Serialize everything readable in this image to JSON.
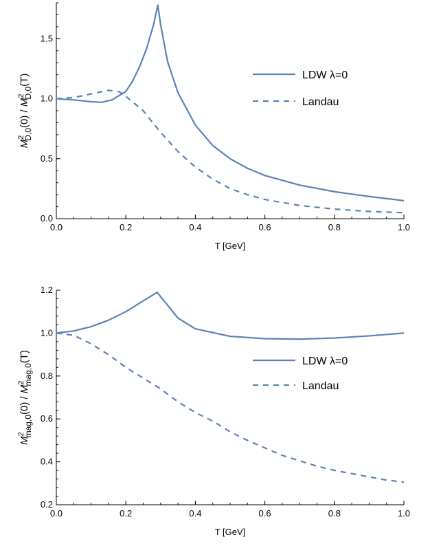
{
  "colors": {
    "series": "#5C81B4",
    "axis": "#000000"
  },
  "chart_data": [
    {
      "type": "line",
      "xlabel": "T [GeV]",
      "ylabel": "M2D,0(0) / M2D,0(T)",
      "ylabel_parts": {
        "m1": "M",
        "sup1": "2",
        "sub1": "D,0",
        "arg1": "(0) / ",
        "m2": "M",
        "sup2": "2",
        "sub2": "D,0",
        "arg2": "(T)"
      },
      "xlim": [
        0,
        1.0
      ],
      "ylim": [
        0,
        1.8
      ],
      "xticks": [
        0.0,
        0.2,
        0.4,
        0.6,
        0.8,
        1.0
      ],
      "xtick_labels": [
        "0.0",
        "0.2",
        "0.4",
        "0.6",
        "0.8",
        "1.0"
      ],
      "yticks": [
        0.0,
        0.5,
        1.0,
        1.5
      ],
      "ytick_labels": [
        "0.0",
        "0.5",
        "1.0",
        "1.5"
      ],
      "legend": "right",
      "series": [
        {
          "name": "LDW λ=0",
          "style": "solid",
          "points": [
            [
              0,
              1.0
            ],
            [
              0.05,
              0.99
            ],
            [
              0.1,
              0.975
            ],
            [
              0.13,
              0.97
            ],
            [
              0.16,
              0.99
            ],
            [
              0.2,
              1.06
            ],
            [
              0.22,
              1.15
            ],
            [
              0.24,
              1.27
            ],
            [
              0.26,
              1.42
            ],
            [
              0.28,
              1.62
            ],
            [
              0.292,
              1.78
            ],
            [
              0.3,
              1.62
            ],
            [
              0.32,
              1.31
            ],
            [
              0.35,
              1.05
            ],
            [
              0.4,
              0.78
            ],
            [
              0.45,
              0.61
            ],
            [
              0.5,
              0.5
            ],
            [
              0.55,
              0.42
            ],
            [
              0.6,
              0.36
            ],
            [
              0.7,
              0.28
            ],
            [
              0.8,
              0.225
            ],
            [
              0.9,
              0.185
            ],
            [
              1.0,
              0.15
            ]
          ]
        },
        {
          "name": "Landau",
          "style": "dashed",
          "points": [
            [
              0,
              1.0
            ],
            [
              0.05,
              1.01
            ],
            [
              0.1,
              1.04
            ],
            [
              0.15,
              1.07
            ],
            [
              0.18,
              1.06
            ],
            [
              0.2,
              1.02
            ],
            [
              0.25,
              0.9
            ],
            [
              0.3,
              0.72
            ],
            [
              0.35,
              0.56
            ],
            [
              0.4,
              0.43
            ],
            [
              0.45,
              0.33
            ],
            [
              0.5,
              0.25
            ],
            [
              0.55,
              0.2
            ],
            [
              0.6,
              0.16
            ],
            [
              0.7,
              0.11
            ],
            [
              0.8,
              0.08
            ],
            [
              0.9,
              0.06
            ],
            [
              1.0,
              0.05
            ]
          ]
        }
      ]
    },
    {
      "type": "line",
      "xlabel": "T [GeV]",
      "ylabel": "M2mag,0(0) / M2mag,0(T)",
      "ylabel_parts": {
        "m1": "M",
        "sup1": "2",
        "sub1": "mag,0",
        "arg1": "(0) / ",
        "m2": "M",
        "sup2": "2",
        "sub2": "mag,0",
        "arg2": "(T)"
      },
      "xlim": [
        0,
        1.0
      ],
      "ylim": [
        0.2,
        1.2
      ],
      "xticks": [
        0.0,
        0.2,
        0.4,
        0.6,
        0.8,
        1.0
      ],
      "xtick_labels": [
        "0.0",
        "0.2",
        "0.4",
        "0.6",
        "0.8",
        "1.0"
      ],
      "yticks": [
        0.2,
        0.4,
        0.6,
        0.8,
        1.0,
        1.2
      ],
      "ytick_labels": [
        "0.2",
        "0.4",
        "0.6",
        "0.8",
        "1.0",
        "1.2"
      ],
      "legend": "right",
      "series": [
        {
          "name": "LDW λ=0",
          "style": "solid",
          "points": [
            [
              0,
              1.0
            ],
            [
              0.05,
              1.01
            ],
            [
              0.1,
              1.03
            ],
            [
              0.15,
              1.06
            ],
            [
              0.2,
              1.1
            ],
            [
              0.25,
              1.15
            ],
            [
              0.29,
              1.19
            ],
            [
              0.31,
              1.15
            ],
            [
              0.35,
              1.07
            ],
            [
              0.4,
              1.02
            ],
            [
              0.5,
              0.985
            ],
            [
              0.6,
              0.974
            ],
            [
              0.7,
              0.972
            ],
            [
              0.8,
              0.977
            ],
            [
              0.9,
              0.987
            ],
            [
              1.0,
              1.0
            ]
          ]
        },
        {
          "name": "Landau",
          "style": "dashed",
          "points": [
            [
              0,
              1.0
            ],
            [
              0.05,
              0.99
            ],
            [
              0.1,
              0.95
            ],
            [
              0.15,
              0.9
            ],
            [
              0.2,
              0.84
            ],
            [
              0.25,
              0.79
            ],
            [
              0.3,
              0.74
            ],
            [
              0.35,
              0.68
            ],
            [
              0.4,
              0.63
            ],
            [
              0.45,
              0.59
            ],
            [
              0.5,
              0.54
            ],
            [
              0.55,
              0.5
            ],
            [
              0.6,
              0.465
            ],
            [
              0.65,
              0.43
            ],
            [
              0.7,
              0.405
            ],
            [
              0.75,
              0.38
            ],
            [
              0.8,
              0.36
            ],
            [
              0.85,
              0.345
            ],
            [
              0.9,
              0.33
            ],
            [
              0.95,
              0.315
            ],
            [
              1.0,
              0.305
            ]
          ]
        }
      ]
    }
  ]
}
